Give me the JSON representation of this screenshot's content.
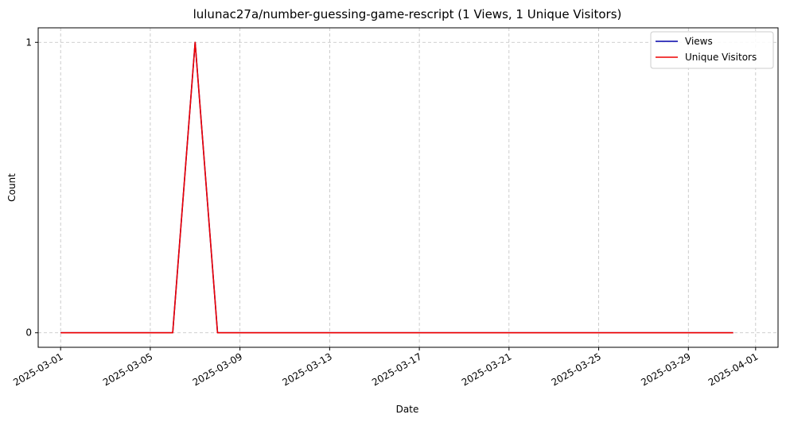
{
  "chart_data": {
    "type": "line",
    "title": "lulunac27a/number-guessing-game-rescript (1 Views, 1 Unique Visitors)",
    "xlabel": "Date",
    "ylabel": "Count",
    "x": [
      "2025-03-01",
      "2025-03-02",
      "2025-03-03",
      "2025-03-04",
      "2025-03-05",
      "2025-03-06",
      "2025-03-07",
      "2025-03-08",
      "2025-03-09",
      "2025-03-10",
      "2025-03-11",
      "2025-03-12",
      "2025-03-13",
      "2025-03-14",
      "2025-03-15",
      "2025-03-16",
      "2025-03-17",
      "2025-03-18",
      "2025-03-19",
      "2025-03-20",
      "2025-03-21",
      "2025-03-22",
      "2025-03-23",
      "2025-03-24",
      "2025-03-25",
      "2025-03-26",
      "2025-03-27",
      "2025-03-28",
      "2025-03-29",
      "2025-03-30",
      "2025-03-31"
    ],
    "series": [
      {
        "name": "Views",
        "color": "#0000aa",
        "values": [
          0,
          0,
          0,
          0,
          0,
          0,
          1,
          0,
          0,
          0,
          0,
          0,
          0,
          0,
          0,
          0,
          0,
          0,
          0,
          0,
          0,
          0,
          0,
          0,
          0,
          0,
          0,
          0,
          0,
          0,
          0
        ]
      },
      {
        "name": "Unique Visitors",
        "color": "#ee0000",
        "values": [
          0,
          0,
          0,
          0,
          0,
          0,
          1,
          0,
          0,
          0,
          0,
          0,
          0,
          0,
          0,
          0,
          0,
          0,
          0,
          0,
          0,
          0,
          0,
          0,
          0,
          0,
          0,
          0,
          0,
          0,
          0
        ]
      }
    ],
    "xlim": [
      "2025-02-28",
      "2025-04-02"
    ],
    "xticks": [
      "2025-03-01",
      "2025-03-05",
      "2025-03-09",
      "2025-03-13",
      "2025-03-17",
      "2025-03-21",
      "2025-03-25",
      "2025-03-29",
      "2025-04-01"
    ],
    "ylim": [
      -0.05,
      1.05
    ],
    "yticks": [
      0,
      1
    ],
    "grid": true,
    "legend_position": "top-right"
  }
}
